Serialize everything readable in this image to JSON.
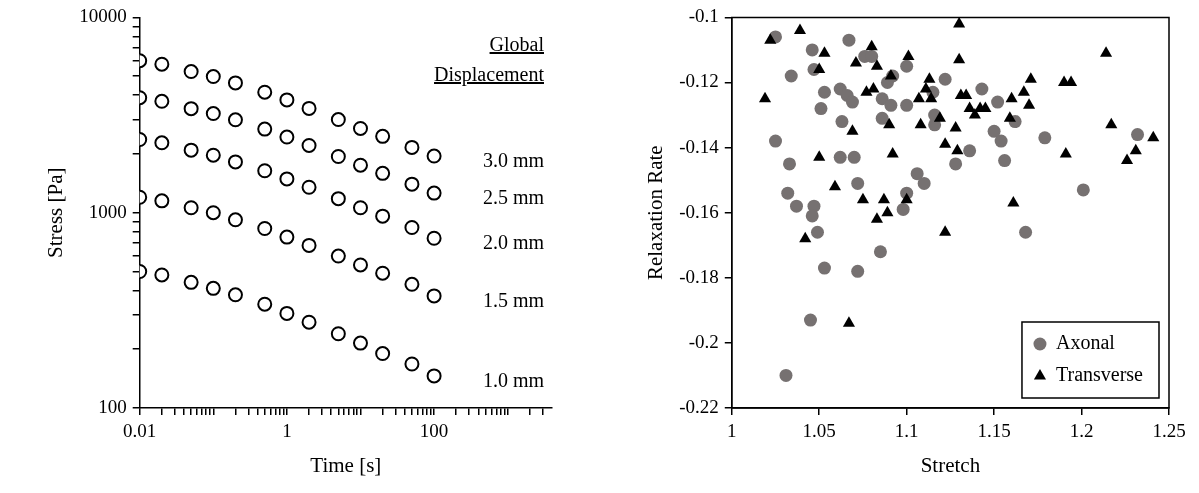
{
  "chart_data": [
    {
      "type": "scatter",
      "xlabel": "Time [s]",
      "ylabel": "Stress [Pa]",
      "legend_title": "Global Displacement",
      "log": "xy",
      "marker": "circle",
      "legend": false,
      "xlim": [
        0.01,
        4000
      ],
      "xticks": [
        0.01,
        {
          "value": 0.02,
          "label": null
        },
        {
          "value": 0.03,
          "label": null
        },
        {
          "value": 0.04,
          "label": null
        },
        {
          "value": 0.05,
          "label": null
        },
        {
          "value": 0.06,
          "label": null
        },
        {
          "value": 0.07,
          "label": null
        },
        {
          "value": 0.08,
          "label": null
        },
        {
          "value": 0.09,
          "label": null
        },
        {
          "value": 0.1,
          "label": null
        },
        {
          "value": 0.2,
          "label": null
        },
        {
          "value": 0.3,
          "label": null
        },
        {
          "value": 0.4,
          "label": null
        },
        {
          "value": 0.5,
          "label": null
        },
        {
          "value": 0.6,
          "label": null
        },
        {
          "value": 0.7,
          "label": null
        },
        {
          "value": 0.8,
          "label": null
        },
        {
          "value": 0.9,
          "label": null
        },
        1,
        {
          "value": 2,
          "label": null
        },
        {
          "value": 3,
          "label": null
        },
        {
          "value": 4,
          "label": null
        },
        {
          "value": 5,
          "label": null
        },
        {
          "value": 6,
          "label": null
        },
        {
          "value": 7,
          "label": null
        },
        {
          "value": 8,
          "label": null
        },
        {
          "value": 9,
          "label": null
        },
        {
          "value": 10,
          "label": null
        },
        {
          "value": 20,
          "label": null
        },
        {
          "value": 30,
          "label": null
        },
        {
          "value": 40,
          "label": null
        },
        {
          "value": 50,
          "label": null
        },
        {
          "value": 60,
          "label": null
        },
        {
          "value": 70,
          "label": null
        },
        {
          "value": 80,
          "label": null
        },
        {
          "value": 90,
          "label": null
        },
        100,
        {
          "value": 200,
          "label": null
        },
        {
          "value": 300,
          "label": null
        },
        {
          "value": 400,
          "label": null
        },
        {
          "value": 500,
          "label": null
        },
        {
          "value": 600,
          "label": null
        },
        {
          "value": 700,
          "label": null
        },
        {
          "value": 800,
          "label": null
        },
        {
          "value": 900,
          "label": null
        },
        {
          "value": 1000,
          "label": null
        },
        {
          "value": 2000,
          "label": null
        },
        {
          "value": 3000,
          "label": null
        }
      ],
      "ylim": [
        100,
        10000
      ],
      "yticks": [
        100,
        {
          "value": 200,
          "label": null
        },
        {
          "value": 300,
          "label": null
        },
        {
          "value": 400,
          "label": null
        },
        {
          "value": 500,
          "label": null
        },
        {
          "value": 600,
          "label": null
        },
        {
          "value": 700,
          "label": null
        },
        {
          "value": 800,
          "label": null
        },
        {
          "value": 900,
          "label": null
        },
        1000,
        {
          "value": 2000,
          "label": null
        },
        {
          "value": 3000,
          "label": null
        },
        {
          "value": 4000,
          "label": null
        },
        {
          "value": 5000,
          "label": null
        },
        {
          "value": 6000,
          "label": null
        },
        {
          "value": 7000,
          "label": null
        },
        {
          "value": 8000,
          "label": null
        },
        {
          "value": 9000,
          "label": null
        },
        10000
      ],
      "x": [
        0.01,
        0.02,
        0.05,
        0.1,
        0.2,
        0.5,
        1,
        2,
        5,
        10,
        20,
        50,
        100
      ],
      "series": [
        {
          "name": "3.0 mm",
          "color": "#000000",
          "values": [
            6000,
            5760,
            5280,
            4980,
            4620,
            4140,
            3780,
            3420,
            3000,
            2700,
            2460,
            2160,
            1950
          ]
        },
        {
          "name": "2.5 mm",
          "color": "#000000",
          "values": [
            3880,
            3720,
            3410,
            3220,
            2990,
            2680,
            2440,
            2210,
            1940,
            1750,
            1590,
            1400,
            1260
          ]
        },
        {
          "name": "2.0 mm",
          "color": "#000000",
          "values": [
            2370,
            2280,
            2090,
            1970,
            1820,
            1640,
            1490,
            1350,
            1180,
            1060,
            960,
            840,
            740
          ]
        },
        {
          "name": "1.5 mm",
          "color": "#000000",
          "values": [
            1200,
            1150,
            1060,
            1000,
            920,
            830,
            750,
            680,
            600,
            540,
            490,
            430,
            375
          ]
        },
        {
          "name": "1.0 mm",
          "color": "#000000",
          "values": [
            500,
            480,
            440,
            410,
            380,
            340,
            305,
            275,
            240,
            215,
            190,
            168,
            146
          ]
        }
      ]
    },
    {
      "type": "scatter",
      "xlabel": "Stretch",
      "ylabel": "Relaxation Rate",
      "legend": "bottom right",
      "xlim": [
        1,
        1.25
      ],
      "xticks": [
        1,
        1.05,
        1.1,
        1.15,
        1.2,
        1.25
      ],
      "ylim": [
        -0.22,
        -0.1
      ],
      "yticks": [
        -0.22,
        -0.2,
        -0.18,
        -0.16,
        -0.14,
        -0.12,
        -0.1
      ],
      "series": [
        {
          "name": "Axonal",
          "color": "#767171",
          "marker": "circle",
          "x": [
            1.025,
            1.034,
            1.025,
            1.033,
            1.032,
            1.037,
            1.047,
            1.046,
            1.049,
            1.053,
            1.046,
            1.047,
            1.053,
            1.051,
            1.067,
            1.062,
            1.066,
            1.069,
            1.063,
            1.062,
            1.07,
            1.072,
            1.072,
            1.076,
            1.08,
            1.086,
            1.091,
            1.089,
            1.092,
            1.1,
            1.1,
            1.086,
            1.085,
            1.098,
            1.106,
            1.11,
            1.1,
            1.045,
            1.031,
            1.122,
            1.143,
            1.152,
            1.115,
            1.116,
            1.116,
            1.162,
            1.15,
            1.154,
            1.136,
            1.128,
            1.156,
            1.179,
            1.232,
            1.201,
            1.168
          ],
          "values": [
            -0.106,
            -0.118,
            -0.138,
            -0.145,
            -0.154,
            -0.158,
            -0.158,
            -0.161,
            -0.166,
            -0.177,
            -0.11,
            -0.116,
            -0.123,
            -0.128,
            -0.107,
            -0.122,
            -0.124,
            -0.126,
            -0.132,
            -0.143,
            -0.143,
            -0.151,
            -0.178,
            -0.112,
            -0.112,
            -0.125,
            -0.127,
            -0.12,
            -0.118,
            -0.127,
            -0.115,
            -0.131,
            -0.172,
            -0.159,
            -0.148,
            -0.151,
            -0.154,
            -0.193,
            -0.21,
            -0.119,
            -0.122,
            -0.126,
            -0.123,
            -0.13,
            -0.133,
            -0.132,
            -0.135,
            -0.138,
            -0.141,
            -0.145,
            -0.144,
            -0.137,
            -0.136,
            -0.153,
            -0.166
          ]
        },
        {
          "name": "Transverse",
          "color": "#000000",
          "marker": "triangle",
          "x": [
            1.022,
            1.039,
            1.053,
            1.05,
            1.019,
            1.071,
            1.08,
            1.083,
            1.077,
            1.081,
            1.091,
            1.069,
            1.09,
            1.05,
            1.092,
            1.059,
            1.075,
            1.087,
            1.1,
            1.101,
            1.107,
            1.113,
            1.108,
            1.042,
            1.067,
            1.083,
            1.089,
            1.13,
            1.13,
            1.111,
            1.114,
            1.131,
            1.134,
            1.136,
            1.142,
            1.145,
            1.139,
            1.171,
            1.16,
            1.167,
            1.17,
            1.159,
            1.19,
            1.194,
            1.214,
            1.119,
            1.128,
            1.122,
            1.129,
            1.191,
            1.217,
            1.231,
            1.226,
            1.241,
            1.161,
            1.122
          ],
          "values": [
            -0.107,
            -0.104,
            -0.111,
            -0.116,
            -0.125,
            -0.114,
            -0.109,
            -0.115,
            -0.123,
            -0.122,
            -0.118,
            -0.135,
            -0.133,
            -0.143,
            -0.142,
            -0.152,
            -0.156,
            -0.156,
            -0.156,
            -0.112,
            -0.125,
            -0.119,
            -0.133,
            -0.168,
            -0.194,
            -0.162,
            -0.16,
            -0.102,
            -0.113,
            -0.122,
            -0.125,
            -0.124,
            -0.124,
            -0.128,
            -0.128,
            -0.128,
            -0.13,
            -0.119,
            -0.125,
            -0.123,
            -0.127,
            -0.131,
            -0.12,
            -0.12,
            -0.111,
            -0.131,
            -0.134,
            -0.139,
            -0.141,
            -0.142,
            -0.133,
            -0.141,
            -0.144,
            -0.137,
            -0.157,
            -0.166
          ]
        }
      ]
    }
  ]
}
